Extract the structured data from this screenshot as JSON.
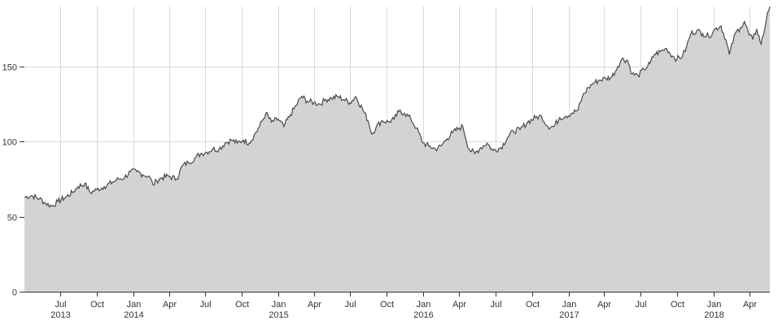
{
  "chart_data": {
    "type": "area",
    "title": "",
    "xlabel": "",
    "ylabel": "",
    "ylim": [
      0,
      190
    ],
    "xlim": [
      "2013-04-02",
      "2018-05-23"
    ],
    "grid": true,
    "legend": "none",
    "colors": {
      "fill": "#d3d3d3",
      "line": "#4a4a4a",
      "grid": "#d9d9d9",
      "axis": "#333333"
    },
    "y_ticks": [
      0,
      50,
      100,
      150
    ],
    "x_ticks": [
      {
        "date": "2013-07-01",
        "label": "Jul",
        "year": "2013"
      },
      {
        "date": "2013-10-01",
        "label": "Oct",
        "year": ""
      },
      {
        "date": "2014-01-01",
        "label": "Jan",
        "year": "2014"
      },
      {
        "date": "2014-04-01",
        "label": "Apr",
        "year": ""
      },
      {
        "date": "2014-07-01",
        "label": "Jul",
        "year": ""
      },
      {
        "date": "2014-10-01",
        "label": "Oct",
        "year": ""
      },
      {
        "date": "2015-01-01",
        "label": "Jan",
        "year": "2015"
      },
      {
        "date": "2015-04-01",
        "label": "Apr",
        "year": ""
      },
      {
        "date": "2015-07-01",
        "label": "Jul",
        "year": ""
      },
      {
        "date": "2015-10-01",
        "label": "Oct",
        "year": ""
      },
      {
        "date": "2016-01-01",
        "label": "Jan",
        "year": "2016"
      },
      {
        "date": "2016-04-01",
        "label": "Apr",
        "year": ""
      },
      {
        "date": "2016-07-01",
        "label": "Jul",
        "year": ""
      },
      {
        "date": "2016-10-01",
        "label": "Oct",
        "year": ""
      },
      {
        "date": "2017-01-01",
        "label": "Jan",
        "year": "2017"
      },
      {
        "date": "2017-04-01",
        "label": "Apr",
        "year": ""
      },
      {
        "date": "2017-07-01",
        "label": "Jul",
        "year": ""
      },
      {
        "date": "2017-10-01",
        "label": "Oct",
        "year": ""
      },
      {
        "date": "2018-01-01",
        "label": "Jan",
        "year": "2018"
      },
      {
        "date": "2018-04-01",
        "label": "Apr",
        "year": ""
      }
    ],
    "series": [
      {
        "points": [
          [
            "2013-04-02",
            63
          ],
          [
            "2013-04-20",
            64
          ],
          [
            "2013-05-10",
            62
          ],
          [
            "2013-05-25",
            59
          ],
          [
            "2013-06-10",
            57
          ],
          [
            "2013-06-25",
            60
          ],
          [
            "2013-07-15",
            63
          ],
          [
            "2013-08-01",
            66
          ],
          [
            "2013-08-15",
            70
          ],
          [
            "2013-09-01",
            72
          ],
          [
            "2013-09-15",
            66
          ],
          [
            "2013-10-01",
            68
          ],
          [
            "2013-10-20",
            70
          ],
          [
            "2013-11-10",
            73
          ],
          [
            "2013-11-25",
            75
          ],
          [
            "2013-12-10",
            76
          ],
          [
            "2013-12-25",
            80
          ],
          [
            "2014-01-10",
            80
          ],
          [
            "2014-01-25",
            78
          ],
          [
            "2014-02-10",
            77
          ],
          [
            "2014-02-20",
            71
          ],
          [
            "2014-03-01",
            74
          ],
          [
            "2014-03-15",
            76
          ],
          [
            "2014-04-01",
            77
          ],
          [
            "2014-04-20",
            75
          ],
          [
            "2014-05-05",
            84
          ],
          [
            "2014-05-20",
            86
          ],
          [
            "2014-06-05",
            89
          ],
          [
            "2014-06-20",
            92
          ],
          [
            "2014-07-05",
            93
          ],
          [
            "2014-07-20",
            95
          ],
          [
            "2014-08-05",
            95
          ],
          [
            "2014-08-20",
            99
          ],
          [
            "2014-09-05",
            101
          ],
          [
            "2014-09-20",
            99
          ],
          [
            "2014-10-05",
            101
          ],
          [
            "2014-10-20",
            99
          ],
          [
            "2014-11-01",
            104
          ],
          [
            "2014-11-15",
            110
          ],
          [
            "2014-12-01",
            119
          ],
          [
            "2014-12-15",
            113
          ],
          [
            "2015-01-01",
            115
          ],
          [
            "2015-01-15",
            110
          ],
          [
            "2015-02-01",
            118
          ],
          [
            "2015-02-15",
            124
          ],
          [
            "2015-03-01",
            130
          ],
          [
            "2015-03-15",
            127
          ],
          [
            "2015-04-01",
            126
          ],
          [
            "2015-04-15",
            125
          ],
          [
            "2015-05-01",
            128
          ],
          [
            "2015-05-15",
            129
          ],
          [
            "2015-06-01",
            130
          ],
          [
            "2015-06-15",
            128
          ],
          [
            "2015-07-01",
            126
          ],
          [
            "2015-07-15",
            130
          ],
          [
            "2015-08-01",
            122
          ],
          [
            "2015-08-15",
            114
          ],
          [
            "2015-08-25",
            105
          ],
          [
            "2015-09-05",
            110
          ],
          [
            "2015-09-20",
            114
          ],
          [
            "2015-10-05",
            113
          ],
          [
            "2015-10-20",
            115
          ],
          [
            "2015-11-01",
            120
          ],
          [
            "2015-11-15",
            119
          ],
          [
            "2015-12-01",
            115
          ],
          [
            "2015-12-15",
            109
          ],
          [
            "2016-01-01",
            99
          ],
          [
            "2016-01-15",
            97
          ],
          [
            "2016-02-01",
            95
          ],
          [
            "2016-02-15",
            97
          ],
          [
            "2016-03-01",
            102
          ],
          [
            "2016-03-15",
            106
          ],
          [
            "2016-04-01",
            109
          ],
          [
            "2016-04-10",
            110
          ],
          [
            "2016-04-25",
            95
          ],
          [
            "2016-05-10",
            92
          ],
          [
            "2016-05-25",
            96
          ],
          [
            "2016-06-10",
            99
          ],
          [
            "2016-06-25",
            94
          ],
          [
            "2016-07-15",
            96
          ],
          [
            "2016-08-01",
            103
          ],
          [
            "2016-08-15",
            107
          ],
          [
            "2016-09-01",
            108
          ],
          [
            "2016-09-20",
            113
          ],
          [
            "2016-10-10",
            116
          ],
          [
            "2016-10-25",
            117
          ],
          [
            "2016-11-10",
            110
          ],
          [
            "2016-11-25",
            110
          ],
          [
            "2016-12-10",
            116
          ],
          [
            "2016-12-25",
            117
          ],
          [
            "2017-01-10",
            119
          ],
          [
            "2017-01-25",
            121
          ],
          [
            "2017-02-05",
            130
          ],
          [
            "2017-02-20",
            136
          ],
          [
            "2017-03-05",
            139
          ],
          [
            "2017-03-20",
            141
          ],
          [
            "2017-04-05",
            142
          ],
          [
            "2017-04-20",
            143
          ],
          [
            "2017-05-05",
            150
          ],
          [
            "2017-05-15",
            155
          ],
          [
            "2017-05-30",
            154
          ],
          [
            "2017-06-10",
            145
          ],
          [
            "2017-06-25",
            144
          ],
          [
            "2017-07-10",
            148
          ],
          [
            "2017-07-25",
            152
          ],
          [
            "2017-08-05",
            158
          ],
          [
            "2017-08-20",
            160
          ],
          [
            "2017-09-05",
            162
          ],
          [
            "2017-09-20",
            157
          ],
          [
            "2017-10-01",
            155
          ],
          [
            "2017-10-15",
            157
          ],
          [
            "2017-10-25",
            163
          ],
          [
            "2017-11-05",
            172
          ],
          [
            "2017-11-20",
            174
          ],
          [
            "2017-12-05",
            172
          ],
          [
            "2017-12-20",
            170
          ],
          [
            "2018-01-05",
            175
          ],
          [
            "2018-01-20",
            177
          ],
          [
            "2018-02-01",
            168
          ],
          [
            "2018-02-10",
            158
          ],
          [
            "2018-02-25",
            172
          ],
          [
            "2018-03-10",
            176
          ],
          [
            "2018-03-20",
            180
          ],
          [
            "2018-04-01",
            171
          ],
          [
            "2018-04-10",
            168
          ],
          [
            "2018-04-20",
            175
          ],
          [
            "2018-05-01",
            165
          ],
          [
            "2018-05-10",
            175
          ],
          [
            "2018-05-17",
            186
          ],
          [
            "2018-05-23",
            190
          ]
        ]
      }
    ]
  }
}
